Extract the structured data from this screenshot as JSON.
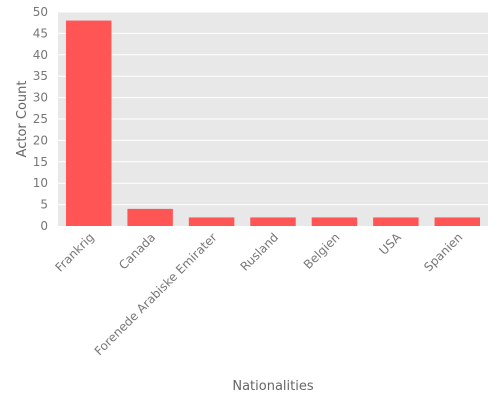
{
  "chart_data": {
    "type": "bar",
    "title": "",
    "xlabel": "Nationalities",
    "ylabel": "Actor Count",
    "categories": [
      "Frankrig",
      "Canada",
      "Forenede Arabiske Emirater",
      "Rusland",
      "Belgien",
      "USA",
      "Spanien"
    ],
    "values": [
      48,
      4,
      2,
      2,
      2,
      2,
      2
    ],
    "ylim": [
      0,
      50
    ],
    "yticks": [
      0,
      5,
      10,
      15,
      20,
      25,
      30,
      35,
      40,
      45,
      50
    ],
    "grid": true,
    "legend": "none",
    "colors": {
      "bar": "#ff5555",
      "plot_background": "#e8e8e8",
      "gridline": "#ffffff",
      "text": "#777777",
      "axis_label": "#666666"
    }
  }
}
